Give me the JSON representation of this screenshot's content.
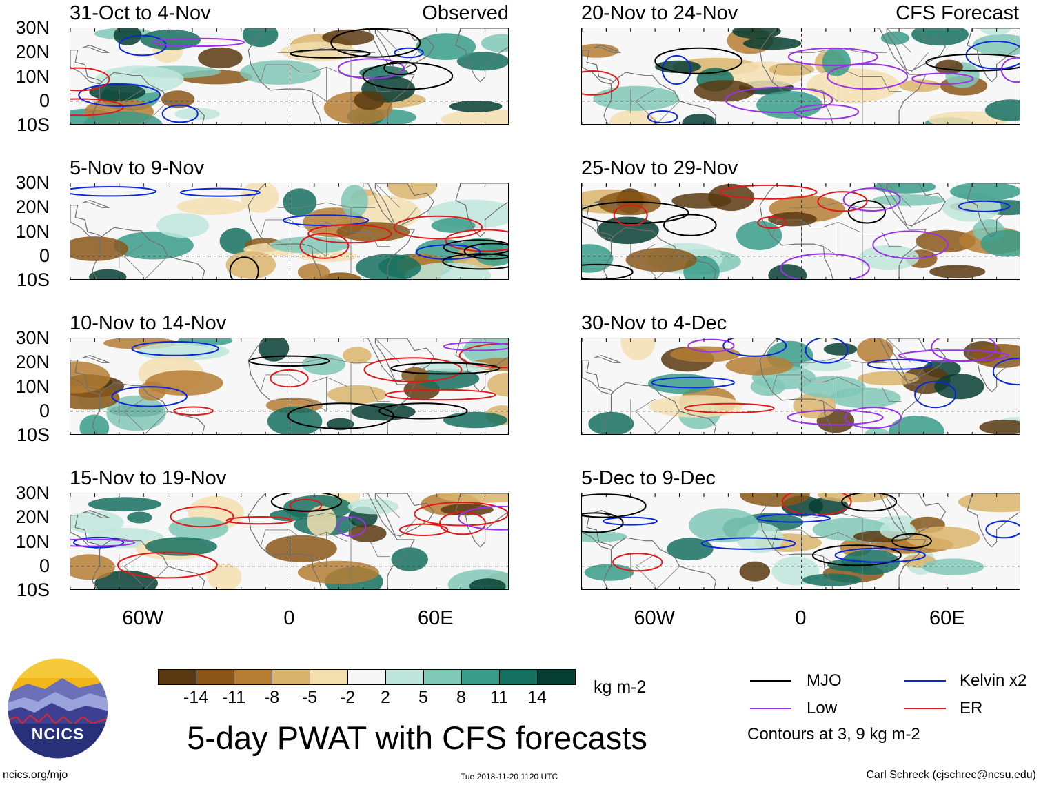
{
  "chart_data": {
    "type": "heatmap",
    "title": "5-day PWAT with CFS forecasts",
    "units": "kg m-2",
    "colorbar_ticks": [
      "-14",
      "-11",
      "-8",
      "-5",
      "-2",
      "2",
      "5",
      "8",
      "11",
      "14"
    ],
    "colorbar_colors": [
      "#5a3a12",
      "#8a5718",
      "#b57e35",
      "#d9b46c",
      "#f3dfb0",
      "#f7f7f7",
      "#bfe6dc",
      "#80c8b7",
      "#3a9c8a",
      "#16705f",
      "#073e33"
    ],
    "lat_ticks": [
      "30N",
      "20N",
      "10N",
      "0",
      "10S"
    ],
    "lat_values": [
      30,
      20,
      10,
      0,
      -10
    ],
    "lon_ticks": [
      "60W",
      "0",
      "60E"
    ],
    "lon_values": [
      -60,
      0,
      60
    ],
    "lon_range": [
      -90,
      90
    ],
    "lat_range": [
      -10,
      30
    ],
    "columns": [
      {
        "tag": "Observed",
        "panels": [
          {
            "title": "31-Oct to 4-Nov"
          },
          {
            "title": "5-Nov to 9-Nov"
          },
          {
            "title": "10-Nov to 14-Nov"
          },
          {
            "title": "15-Nov to 19-Nov"
          }
        ]
      },
      {
        "tag": "CFS Forecast",
        "panels": [
          {
            "title": "20-Nov to 24-Nov"
          },
          {
            "title": "25-Nov to 29-Nov"
          },
          {
            "title": "30-Nov to 4-Dec"
          },
          {
            "title": "5-Dec to 9-Dec"
          }
        ]
      }
    ],
    "legend": [
      {
        "label": "MJO",
        "color": "#000000"
      },
      {
        "label": "Kelvin x2",
        "color": "#0a28d8"
      },
      {
        "label": "Low",
        "color": "#9a33e8"
      },
      {
        "label": "ER",
        "color": "#e01818"
      }
    ],
    "contour_note": "Contours at 3, 9 kg m-2"
  },
  "logo": {
    "text": "NCICS"
  },
  "footer": {
    "url": "ncics.org/mjo",
    "timestamp": "Tue 2018-11-20 1120 UTC",
    "author": "Carl Schreck (cjschrec@ncsu.edu)"
  }
}
